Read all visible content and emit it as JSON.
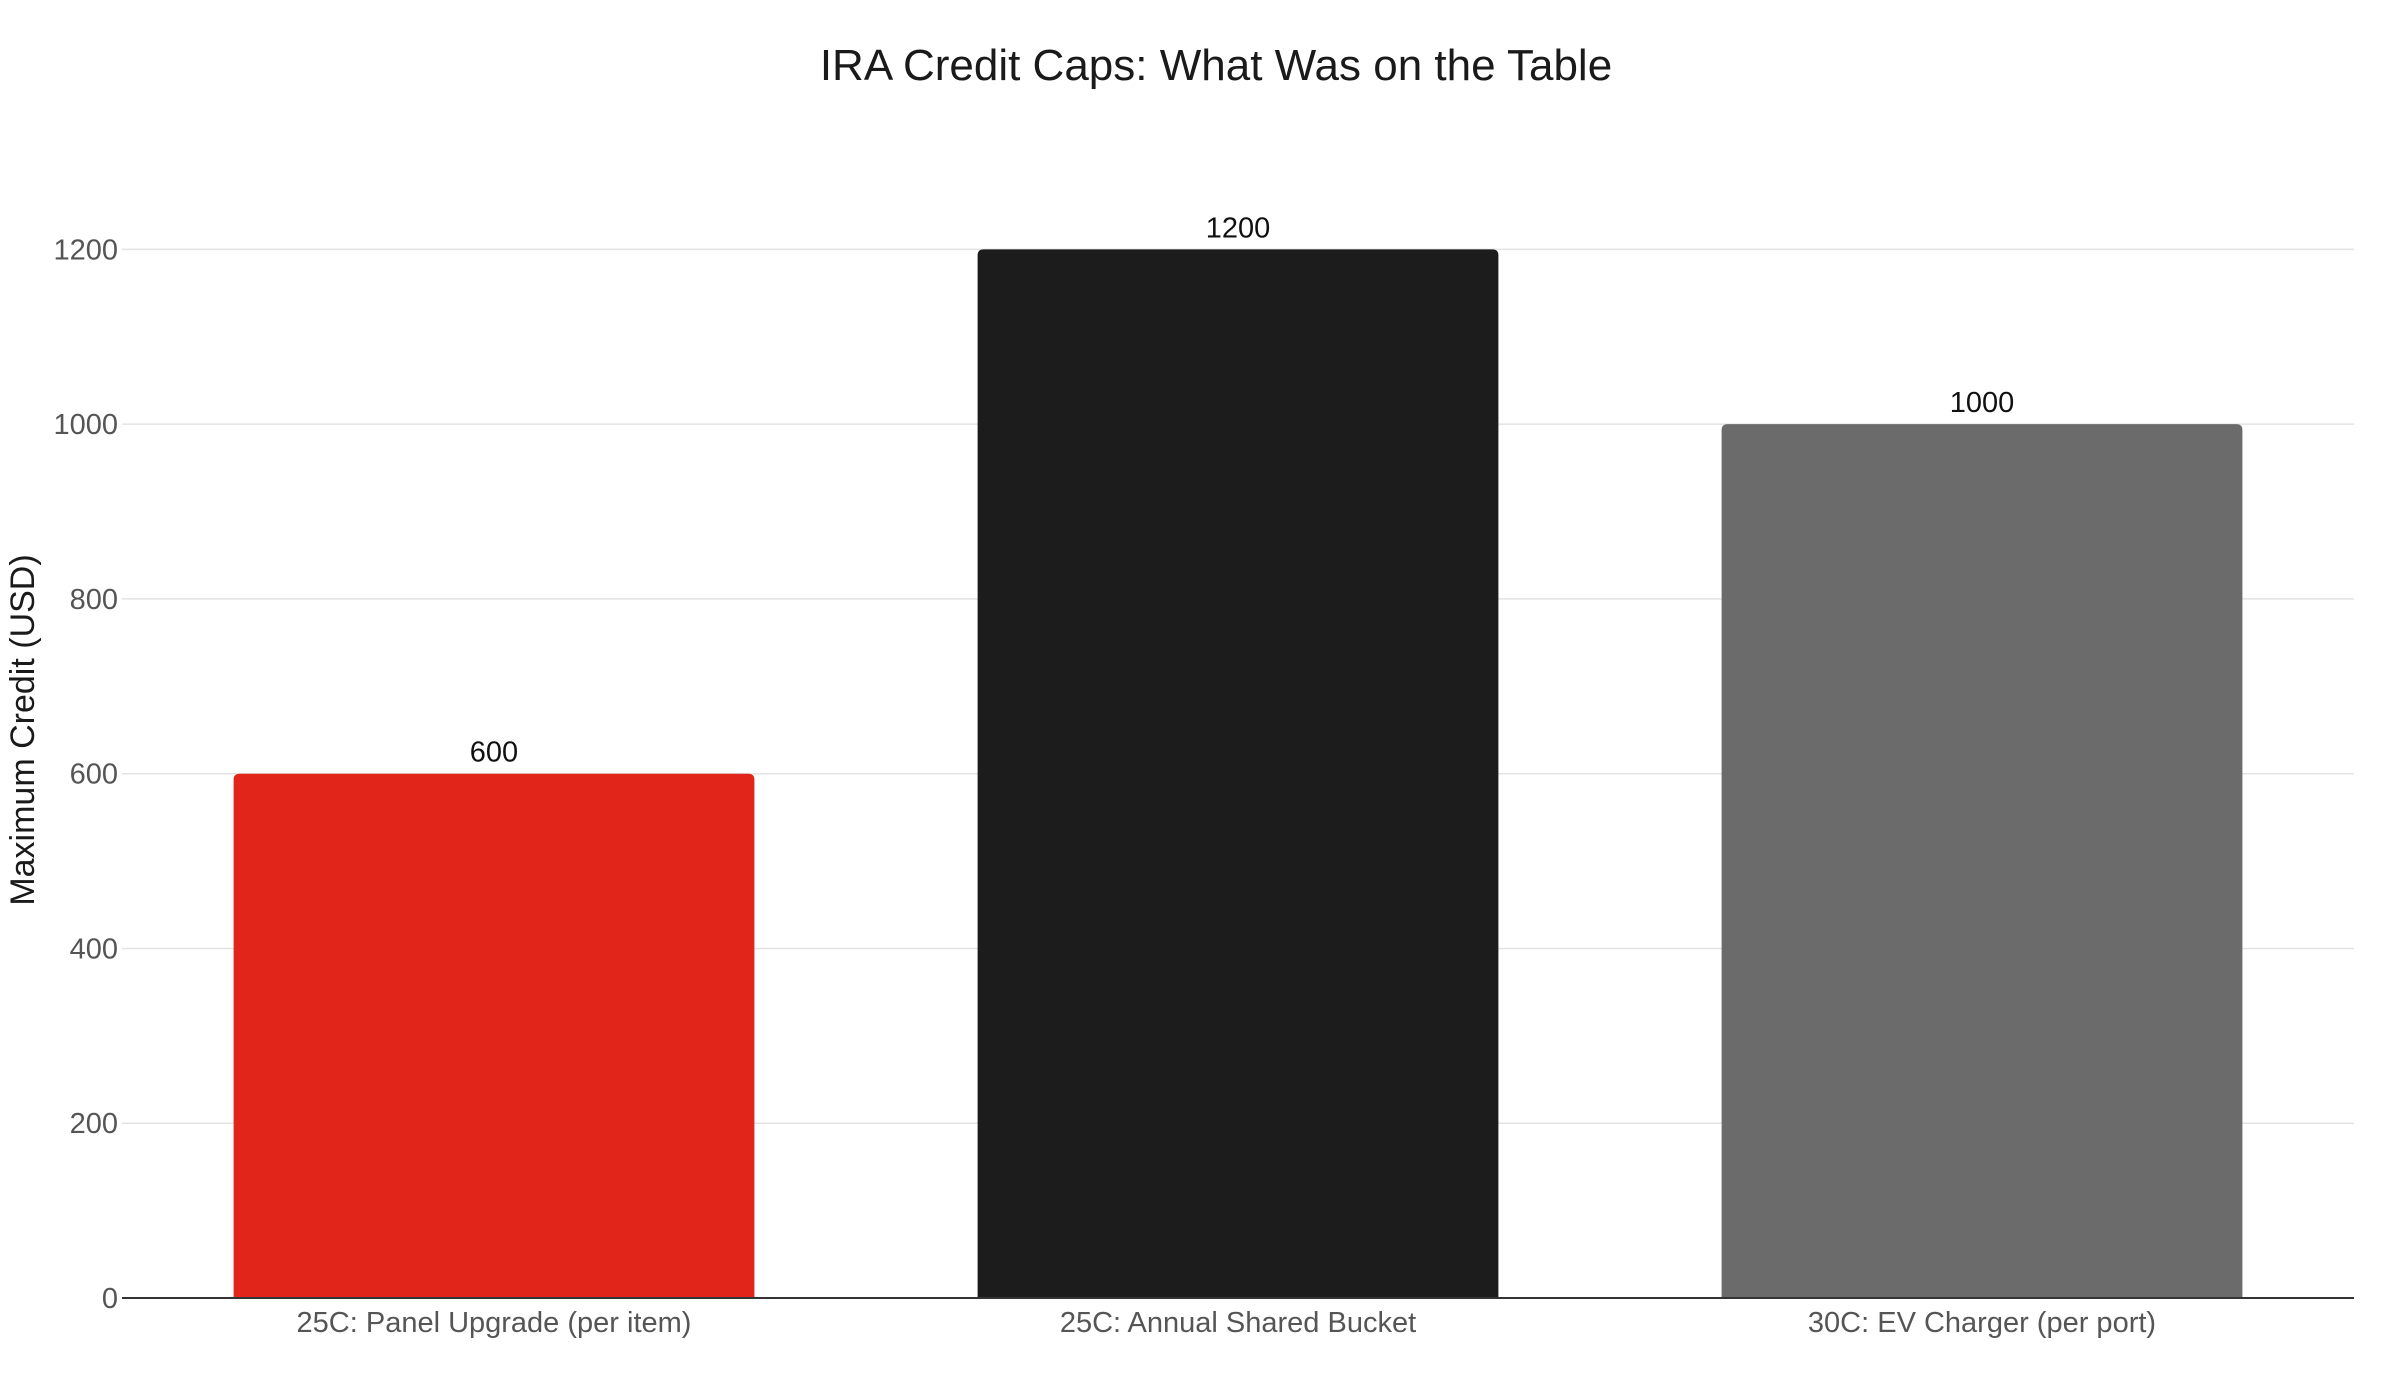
{
  "chart_data": {
    "type": "bar",
    "title": "IRA Credit Caps: What Was on the Table",
    "xlabel": "",
    "ylabel": "Maximum Credit (USD)",
    "ylim": [
      0,
      1300
    ],
    "yticks": [
      0,
      200,
      400,
      600,
      800,
      1000,
      1200
    ],
    "grid": true,
    "legend": "none",
    "categories": [
      "25C: Panel Upgrade (per item)",
      "25C: Annual Shared Bucket",
      "30C: EV Charger (per port)"
    ],
    "values": [
      600,
      1200,
      1000
    ],
    "colors": [
      "#e1251b",
      "#1c1c1c",
      "#6b6b6b"
    ],
    "data_labels": [
      "600",
      "1200",
      "1000"
    ]
  }
}
